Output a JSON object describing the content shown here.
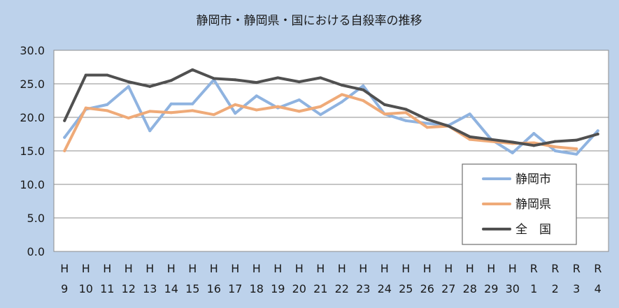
{
  "chart_data": {
    "type": "line",
    "title": "静岡市・静岡県・国における自殺率の推移",
    "xlabel": "",
    "ylabel": "",
    "ylim": [
      0,
      30
    ],
    "yticks": [
      "0.0",
      "5.0",
      "10.0",
      "15.0",
      "20.0",
      "25.0",
      "30.0"
    ],
    "grid": true,
    "legend_position": "bottom-right",
    "categories": [
      [
        "H",
        "9"
      ],
      [
        "H",
        "10"
      ],
      [
        "H",
        "11"
      ],
      [
        "H",
        "12"
      ],
      [
        "H",
        "13"
      ],
      [
        "H",
        "14"
      ],
      [
        "H",
        "15"
      ],
      [
        "H",
        "16"
      ],
      [
        "H",
        "17"
      ],
      [
        "H",
        "18"
      ],
      [
        "H",
        "19"
      ],
      [
        "H",
        "20"
      ],
      [
        "H",
        "21"
      ],
      [
        "H",
        "22"
      ],
      [
        "H",
        "23"
      ],
      [
        "H",
        "24"
      ],
      [
        "H",
        "25"
      ],
      [
        "H",
        "26"
      ],
      [
        "H",
        "27"
      ],
      [
        "H",
        "28"
      ],
      [
        "H",
        "29"
      ],
      [
        "H",
        "30"
      ],
      [
        "R",
        "1"
      ],
      [
        "R",
        "2"
      ],
      [
        "R",
        "3"
      ],
      [
        "R",
        "4"
      ]
    ],
    "series": [
      {
        "name": "静岡市",
        "color": "#8fb3e0",
        "values": [
          17.0,
          21.2,
          21.9,
          24.6,
          18.0,
          22.0,
          22.0,
          25.6,
          20.6,
          23.2,
          21.4,
          22.6,
          20.4,
          22.3,
          24.7,
          20.5,
          19.5,
          19.1,
          18.8,
          20.5,
          16.7,
          14.7,
          17.6,
          15.0,
          14.5,
          18.0
        ]
      },
      {
        "name": "静岡県",
        "color": "#efaa78",
        "values": [
          15.0,
          21.4,
          21.0,
          19.9,
          20.9,
          20.7,
          21.0,
          20.4,
          21.9,
          21.1,
          21.6,
          20.9,
          21.6,
          23.4,
          22.5,
          20.5,
          20.7,
          18.5,
          18.7,
          16.7,
          16.4,
          16.1,
          16.2,
          15.6,
          15.3,
          null
        ]
      },
      {
        "name": "全　国",
        "color": "#505050",
        "values": [
          19.5,
          26.3,
          26.3,
          25.3,
          24.6,
          25.5,
          27.1,
          25.8,
          25.6,
          25.2,
          25.9,
          25.3,
          25.9,
          24.8,
          24.1,
          21.9,
          21.2,
          19.7,
          18.7,
          17.1,
          16.7,
          16.3,
          15.8,
          16.4,
          16.6,
          17.5
        ]
      }
    ]
  }
}
